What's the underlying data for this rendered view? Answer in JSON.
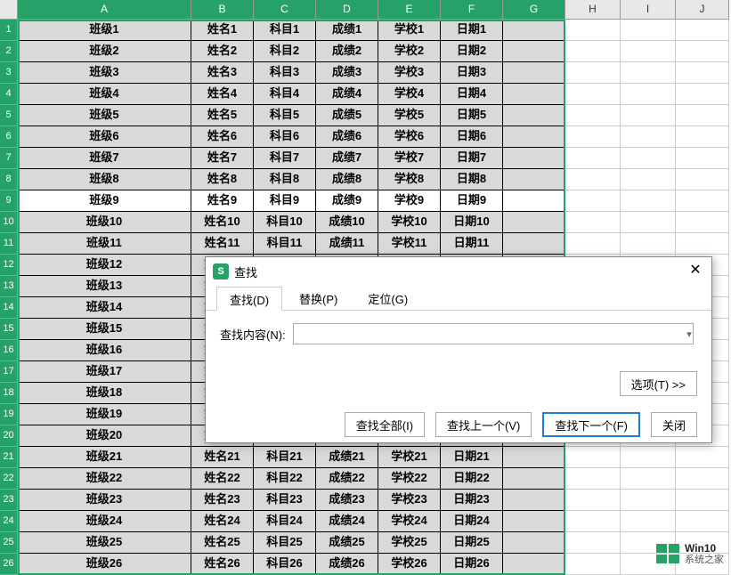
{
  "columns": [
    "A",
    "B",
    "C",
    "D",
    "E",
    "F",
    "G",
    "H",
    "I",
    "J"
  ],
  "selected_cols": [
    "A",
    "B",
    "C",
    "D",
    "E",
    "F",
    "G"
  ],
  "active_row": 9,
  "row_count": 26,
  "data_prefixes": {
    "A": "班级",
    "B": "姓名",
    "C": "科目",
    "D": "成绩",
    "E": "学校",
    "F": "日期"
  },
  "dialog": {
    "title": "查找",
    "tabs": [
      {
        "label": "查找(D)",
        "active": true
      },
      {
        "label": "替换(P)",
        "active": false
      },
      {
        "label": "定位(G)",
        "active": false
      }
    ],
    "field_label": "查找内容(N):",
    "field_value": "",
    "options_btn": "选项(T) >>",
    "buttons": {
      "find_all": "查找全部(I)",
      "find_prev": "查找上一个(V)",
      "find_next": "查找下一个(F)",
      "close": "关闭"
    }
  },
  "watermark": {
    "line1": "Win10",
    "line2": "系统之家"
  },
  "colors": {
    "header_sel": "#26a269",
    "cell_bg": "#d9d9d9",
    "border": "#000000"
  }
}
